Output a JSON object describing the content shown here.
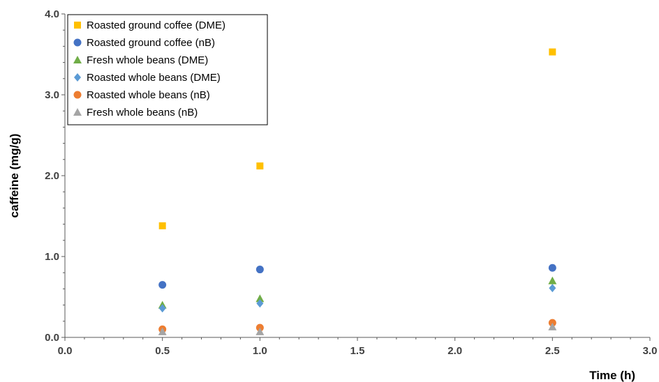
{
  "chart_data": {
    "type": "scatter",
    "title": "",
    "xlabel": "Time (h)",
    "ylabel": "caffeine (mg/g)",
    "xlim": [
      0,
      3
    ],
    "ylim": [
      0,
      4
    ],
    "x_ticks": [
      "0.0",
      "0.5",
      "1.0",
      "1.5",
      "2.0",
      "2.5",
      "3.0"
    ],
    "y_ticks": [
      "0.0",
      "1.0",
      "2.0",
      "3.0",
      "4.0"
    ],
    "grid": false,
    "legend_position": "top-left",
    "series": [
      {
        "name": "Roasted ground coffee (DME)",
        "marker": "square",
        "color": "#FFC000",
        "points": [
          {
            "x": 0.5,
            "y": 1.38
          },
          {
            "x": 1.0,
            "y": 2.12
          },
          {
            "x": 2.5,
            "y": 3.53
          }
        ]
      },
      {
        "name": "Roasted ground coffee (nB)",
        "marker": "circle",
        "color": "#4472C4",
        "points": [
          {
            "x": 0.5,
            "y": 0.65
          },
          {
            "x": 1.0,
            "y": 0.84
          },
          {
            "x": 2.5,
            "y": 0.86
          }
        ]
      },
      {
        "name": "Fresh whole beans (DME)",
        "marker": "triangle",
        "color": "#70AD47",
        "points": [
          {
            "x": 0.5,
            "y": 0.4
          },
          {
            "x": 1.0,
            "y": 0.48
          },
          {
            "x": 2.5,
            "y": 0.7
          }
        ]
      },
      {
        "name": "Roasted whole beans (DME)",
        "marker": "diamond",
        "color": "#5B9BD5",
        "points": [
          {
            "x": 0.5,
            "y": 0.36
          },
          {
            "x": 1.0,
            "y": 0.42
          },
          {
            "x": 2.5,
            "y": 0.61
          }
        ]
      },
      {
        "name": "Roasted whole beans (nB)",
        "marker": "circle",
        "color": "#ED7D31",
        "points": [
          {
            "x": 0.5,
            "y": 0.1
          },
          {
            "x": 1.0,
            "y": 0.12
          },
          {
            "x": 2.5,
            "y": 0.18
          }
        ]
      },
      {
        "name": "Fresh whole beans (nB)",
        "marker": "triangle",
        "color": "#A5A5A5",
        "points": [
          {
            "x": 0.5,
            "y": 0.07
          },
          {
            "x": 1.0,
            "y": 0.07
          },
          {
            "x": 2.5,
            "y": 0.13
          }
        ]
      }
    ]
  }
}
